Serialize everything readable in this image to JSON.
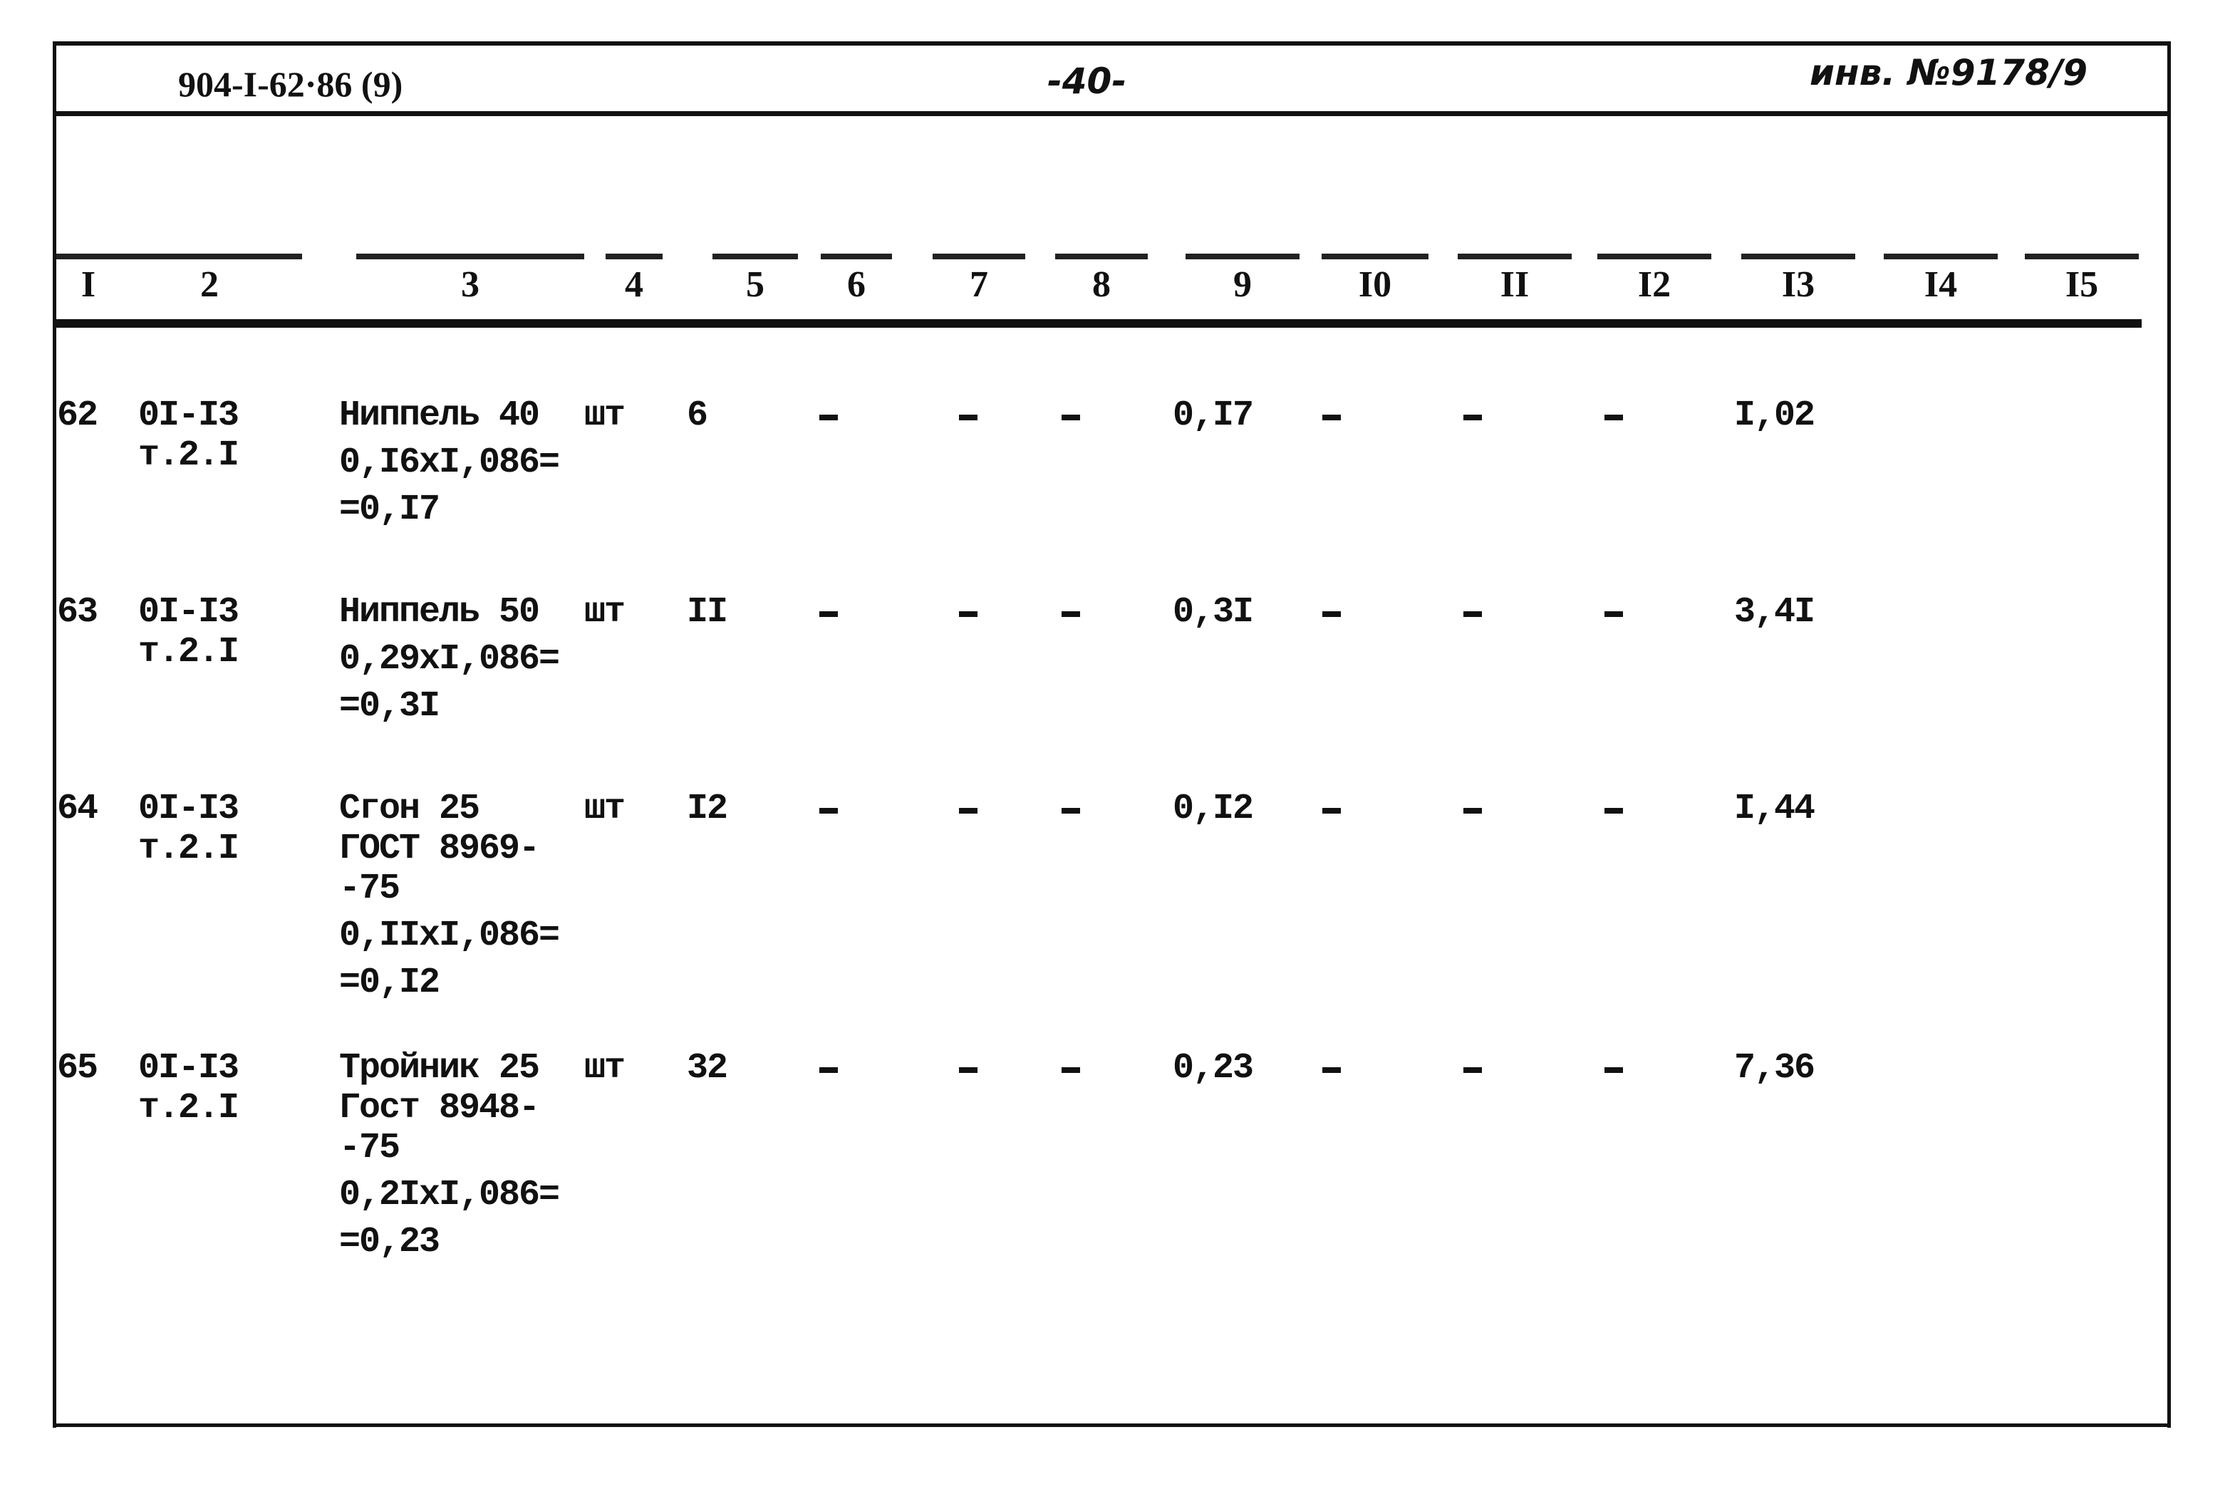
{
  "header": {
    "doc_code": "904-I-62·86 (9)",
    "page_number": "-40-",
    "inventory_number": "инв. №9178/9"
  },
  "columns": [
    "I",
    "2",
    "3",
    "4",
    "5",
    "6",
    "7",
    "8",
    "9",
    "I0",
    "II",
    "I2",
    "I3",
    "I4",
    "I5"
  ],
  "rows": [
    {
      "num": "62",
      "ref": [
        "0I-I3",
        "т.2.I"
      ],
      "name": [
        "Ниппель 40"
      ],
      "calc": [
        "0,I6xI,086=",
        "=0,I7"
      ],
      "unit": "шт",
      "qty": "6",
      "c6": "–",
      "c7": "–",
      "c8": "–",
      "c9": "0,I7",
      "c10": "–",
      "c11": "–",
      "c12": "–",
      "c13": "I,02"
    },
    {
      "num": "63",
      "ref": [
        "0I-I3",
        "т.2.I"
      ],
      "name": [
        "Ниппель 50"
      ],
      "calc": [
        "0,29xI,086=",
        "=0,3I"
      ],
      "unit": "шт",
      "qty": "II",
      "c6": "–",
      "c7": "–",
      "c8": "–",
      "c9": "0,3I",
      "c10": "–",
      "c11": "–",
      "c12": "–",
      "c13": "3,4I"
    },
    {
      "num": "64",
      "ref": [
        "0I-I3",
        "т.2.I"
      ],
      "name": [
        "Сгон 25",
        "ГОСТ 8969-",
        "-75"
      ],
      "calc": [
        "0,IIxI,086=",
        "=0,I2"
      ],
      "unit": "шт",
      "qty": "I2",
      "c6": "–",
      "c7": "–",
      "c8": "–",
      "c9": "0,I2",
      "c10": "–",
      "c11": "–",
      "c12": "–",
      "c13": "I,44"
    },
    {
      "num": "65",
      "ref": [
        "0I-I3",
        "т.2.I"
      ],
      "name": [
        "Тройник 25",
        "Гост 8948-",
        "-75"
      ],
      "calc": [
        "0,2IxI,086=",
        "=0,23"
      ],
      "unit": "шт",
      "qty": "32",
      "c6": "–",
      "c7": "–",
      "c8": "–",
      "c9": "0,23",
      "c10": "–",
      "c11": "–",
      "c12": "–",
      "c13": "7,36"
    }
  ]
}
